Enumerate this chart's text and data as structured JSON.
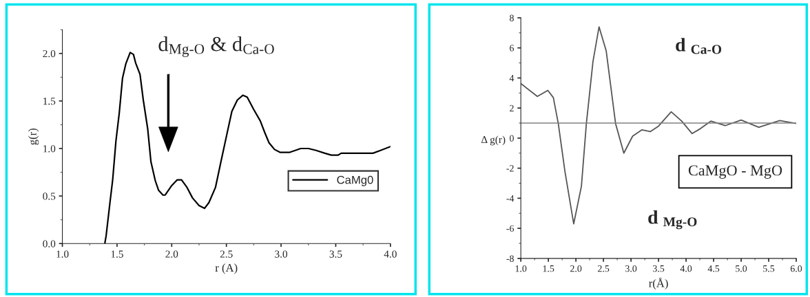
{
  "chart_data": [
    {
      "type": "line",
      "xlabel": "r (A)",
      "ylabel": "g(r)",
      "xlim": [
        1.0,
        4.0
      ],
      "ylim": [
        0,
        2.25
      ],
      "xticks": [
        {
          "value": 1.0,
          "label": "1.0"
        },
        {
          "value": 1.5,
          "label": "1.5"
        },
        {
          "value": 2.0,
          "label": "2.0"
        },
        {
          "value": 2.5,
          "label": "2.5"
        },
        {
          "value": 3.0,
          "label": "3.0"
        },
        {
          "value": 3.5,
          "label": "3.5"
        },
        {
          "value": 4.0,
          "label": "4.0"
        }
      ],
      "yticks": [
        {
          "value": 0,
          "label": "0.0"
        },
        {
          "value": 0.5,
          "label": "0.5"
        },
        {
          "value": 1.0,
          "label": "1.0"
        },
        {
          "value": 1.5,
          "label": "1.5"
        },
        {
          "value": 2.0,
          "label": "2.0"
        }
      ],
      "legend": "bottom right",
      "grid": false,
      "annotations": [
        "d$_{Mg‐O}$ & d$_{Ca‐O}$"
      ],
      "series": [
        {
          "name": "CaMg0",
          "color": "#000000",
          "x": [
            1.388,
            1.4,
            1.435,
            1.46,
            1.49,
            1.52,
            1.55,
            1.58,
            1.62,
            1.65,
            1.67,
            1.71,
            1.74,
            1.78,
            1.81,
            1.85,
            1.88,
            1.92,
            1.94,
            2.0,
            2.05,
            2.09,
            2.14,
            2.19,
            2.25,
            2.3,
            2.34,
            2.4,
            2.45,
            2.51,
            2.55,
            2.6,
            2.65,
            2.69,
            2.75,
            2.81,
            2.85,
            2.89,
            2.94,
            2.99,
            3.08,
            3.18,
            3.25,
            3.32,
            3.4,
            3.46,
            3.52,
            3.55,
            3.84,
            3.91,
            4.0
          ],
          "values": [
            0,
            0.08,
            0.43,
            0.67,
            1.08,
            1.37,
            1.74,
            1.89,
            2.01,
            1.99,
            1.9,
            1.78,
            1.51,
            1.21,
            0.86,
            0.66,
            0.56,
            0.51,
            0.51,
            0.61,
            0.67,
            0.67,
            0.59,
            0.48,
            0.4,
            0.37,
            0.43,
            0.59,
            0.86,
            1.18,
            1.39,
            1.51,
            1.56,
            1.54,
            1.41,
            1.29,
            1.17,
            1.06,
            0.99,
            0.96,
            0.96,
            1.0,
            1.0,
            0.98,
            0.95,
            0.93,
            0.93,
            0.95,
            0.95,
            0.98,
            1.02
          ]
        }
      ]
    },
    {
      "type": "line",
      "xlabel": "r(Å)",
      "ylabel": "Δ g(r)",
      "xlim": [
        1.0,
        6.0
      ],
      "ylim": [
        -8,
        8
      ],
      "xticks": [
        {
          "value": 1.0,
          "label": "1.0"
        },
        {
          "value": 1.5,
          "label": "1.5"
        },
        {
          "value": 2.0,
          "label": "2.0"
        },
        {
          "value": 2.5,
          "label": "2.5"
        },
        {
          "value": 3.0,
          "label": "3.0"
        },
        {
          "value": 3.5,
          "label": "3.5"
        },
        {
          "value": 4.0,
          "label": "4.0"
        },
        {
          "value": 4.5,
          "label": "4.5"
        },
        {
          "value": 5.0,
          "label": "5.0"
        },
        {
          "value": 5.5,
          "label": "5.5"
        },
        {
          "value": 6.0,
          "label": "6.0"
        }
      ],
      "yticks": [
        -8,
        -6,
        -4,
        -2,
        0,
        2,
        4,
        6,
        8
      ],
      "grid": false,
      "ref_lines": [
        {
          "axis": "y",
          "value": 1,
          "color": "#808080"
        }
      ],
      "annotations": [
        "d $_{Ca‐O}$",
        "d $_{Mg‐O}$",
        "CaMgO - MgO"
      ],
      "series": [
        {
          "color": "#555555",
          "x": [
            1.0,
            1.3,
            1.49,
            1.59,
            1.68,
            1.8,
            1.96,
            2.1,
            2.19,
            2.31,
            2.42,
            2.55,
            2.72,
            2.87,
            3.03,
            3.2,
            3.35,
            3.5,
            3.73,
            3.92,
            4.11,
            4.26,
            4.45,
            4.71,
            5.0,
            5.32,
            5.7,
            6.0
          ],
          "values": [
            3.63,
            2.77,
            3.17,
            2.7,
            0.97,
            -2.2,
            -5.7,
            -3.2,
            0.97,
            5.1,
            7.4,
            5.8,
            0.97,
            -1.0,
            0.13,
            0.55,
            0.43,
            0.8,
            1.75,
            1.13,
            0.3,
            0.63,
            1.13,
            0.83,
            1.2,
            0.72,
            1.17,
            0.97
          ]
        }
      ]
    }
  ]
}
